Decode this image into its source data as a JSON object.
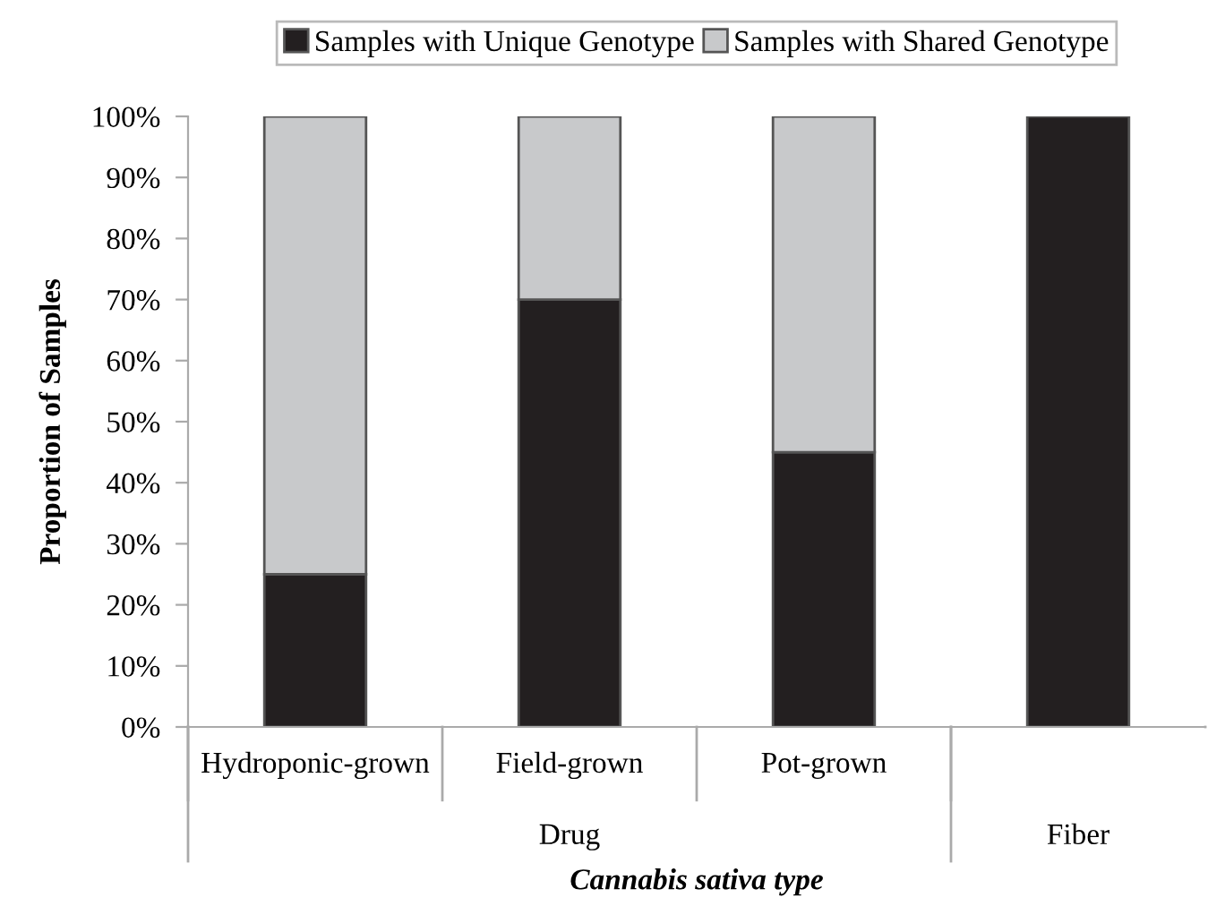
{
  "chart_data": {
    "type": "bar",
    "stacked": true,
    "xlabel": "Cannabis sativa type",
    "ylabel": "Proportion of Samples",
    "categories": [
      "Hydroponic-grown",
      "Field-grown",
      "Pot-grown",
      null
    ],
    "series": [
      {
        "name": "Samples with Unique Genotype",
        "color": "#231f20",
        "values": [
          25,
          70,
          45,
          100
        ]
      },
      {
        "name": "Samples with Shared Genotype",
        "color": "#c8c9cb",
        "values": [
          75,
          30,
          55,
          null
        ]
      }
    ],
    "annotations": [
      "Drug",
      "Fiber"
    ],
    "ylim": [
      0,
      100
    ],
    "yticks": [
      {
        "value": 0,
        "label": "0%"
      },
      {
        "value": 10,
        "label": "10%"
      },
      {
        "value": 20,
        "label": "20%"
      },
      {
        "value": 30,
        "label": "30%"
      },
      {
        "value": 40,
        "label": "40%"
      },
      {
        "value": 50,
        "label": "50%"
      },
      {
        "value": 60,
        "label": "60%"
      },
      {
        "value": 70,
        "label": "70%"
      },
      {
        "value": 80,
        "label": "80%"
      },
      {
        "value": 90,
        "label": "90%"
      },
      {
        "value": 100,
        "label": "100%"
      }
    ],
    "grid": false,
    "legend": "top"
  }
}
